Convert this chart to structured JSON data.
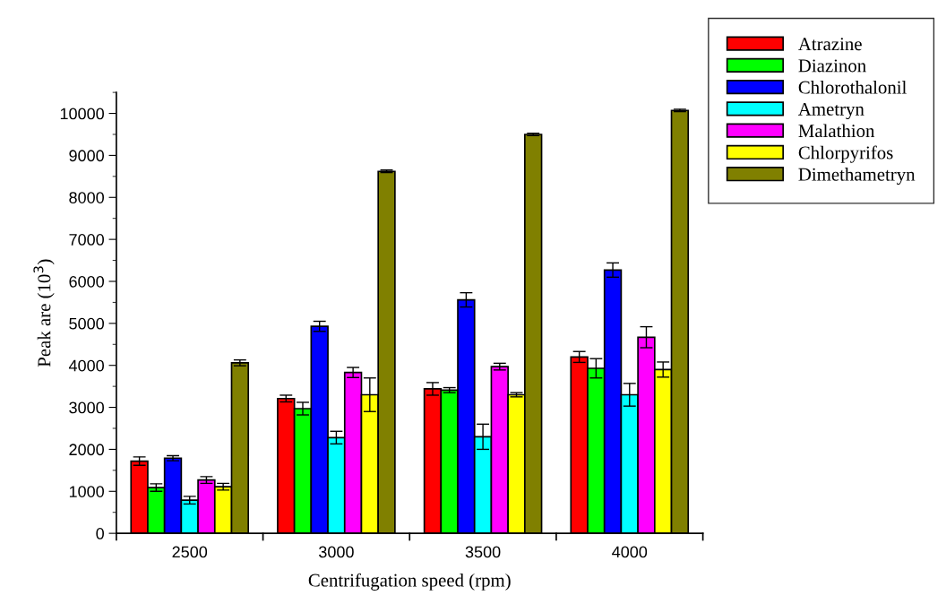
{
  "chart_data": {
    "type": "bar",
    "xlabel": "Centrifugation speed (rpm)",
    "ylabel": "Peak are (10$^{3}$)",
    "categories": [
      "2500",
      "3000",
      "3500",
      "4000"
    ],
    "ylim": [
      0,
      10500
    ],
    "yticks": [
      0,
      1000,
      2000,
      3000,
      4000,
      5000,
      6000,
      7000,
      8000,
      9000,
      10000
    ],
    "grid": false,
    "legend": "top right",
    "series": [
      {
        "name": "Atrazine",
        "color": "#ff0000",
        "values": [
          1720,
          3210,
          3440,
          4200
        ],
        "errors": [
          100,
          80,
          150,
          130
        ]
      },
      {
        "name": "Diazinon",
        "color": "#00ff00",
        "values": [
          1090,
          2970,
          3410,
          3930
        ],
        "errors": [
          90,
          150,
          60,
          230
        ]
      },
      {
        "name": "Chlorothalonil",
        "color": "#0000ff",
        "values": [
          1790,
          4930,
          5560,
          6270
        ],
        "errors": [
          60,
          120,
          170,
          170
        ]
      },
      {
        "name": "Ametryn",
        "color": "#00ffff",
        "values": [
          790,
          2280,
          2300,
          3300
        ],
        "errors": [
          90,
          150,
          300,
          270
        ]
      },
      {
        "name": "Malathion",
        "color": "#ff00ff",
        "values": [
          1270,
          3830,
          3970,
          4670
        ],
        "errors": [
          80,
          120,
          80,
          250
        ]
      },
      {
        "name": "Chlorpyrifos",
        "color": "#ffff00",
        "values": [
          1110,
          3300,
          3300,
          3900
        ],
        "errors": [
          80,
          400,
          50,
          180
        ]
      },
      {
        "name": "Dimethametryn",
        "color": "#808000",
        "values": [
          4060,
          8620,
          9500,
          10070
        ],
        "errors": [
          70,
          30,
          30,
          30
        ]
      }
    ]
  }
}
